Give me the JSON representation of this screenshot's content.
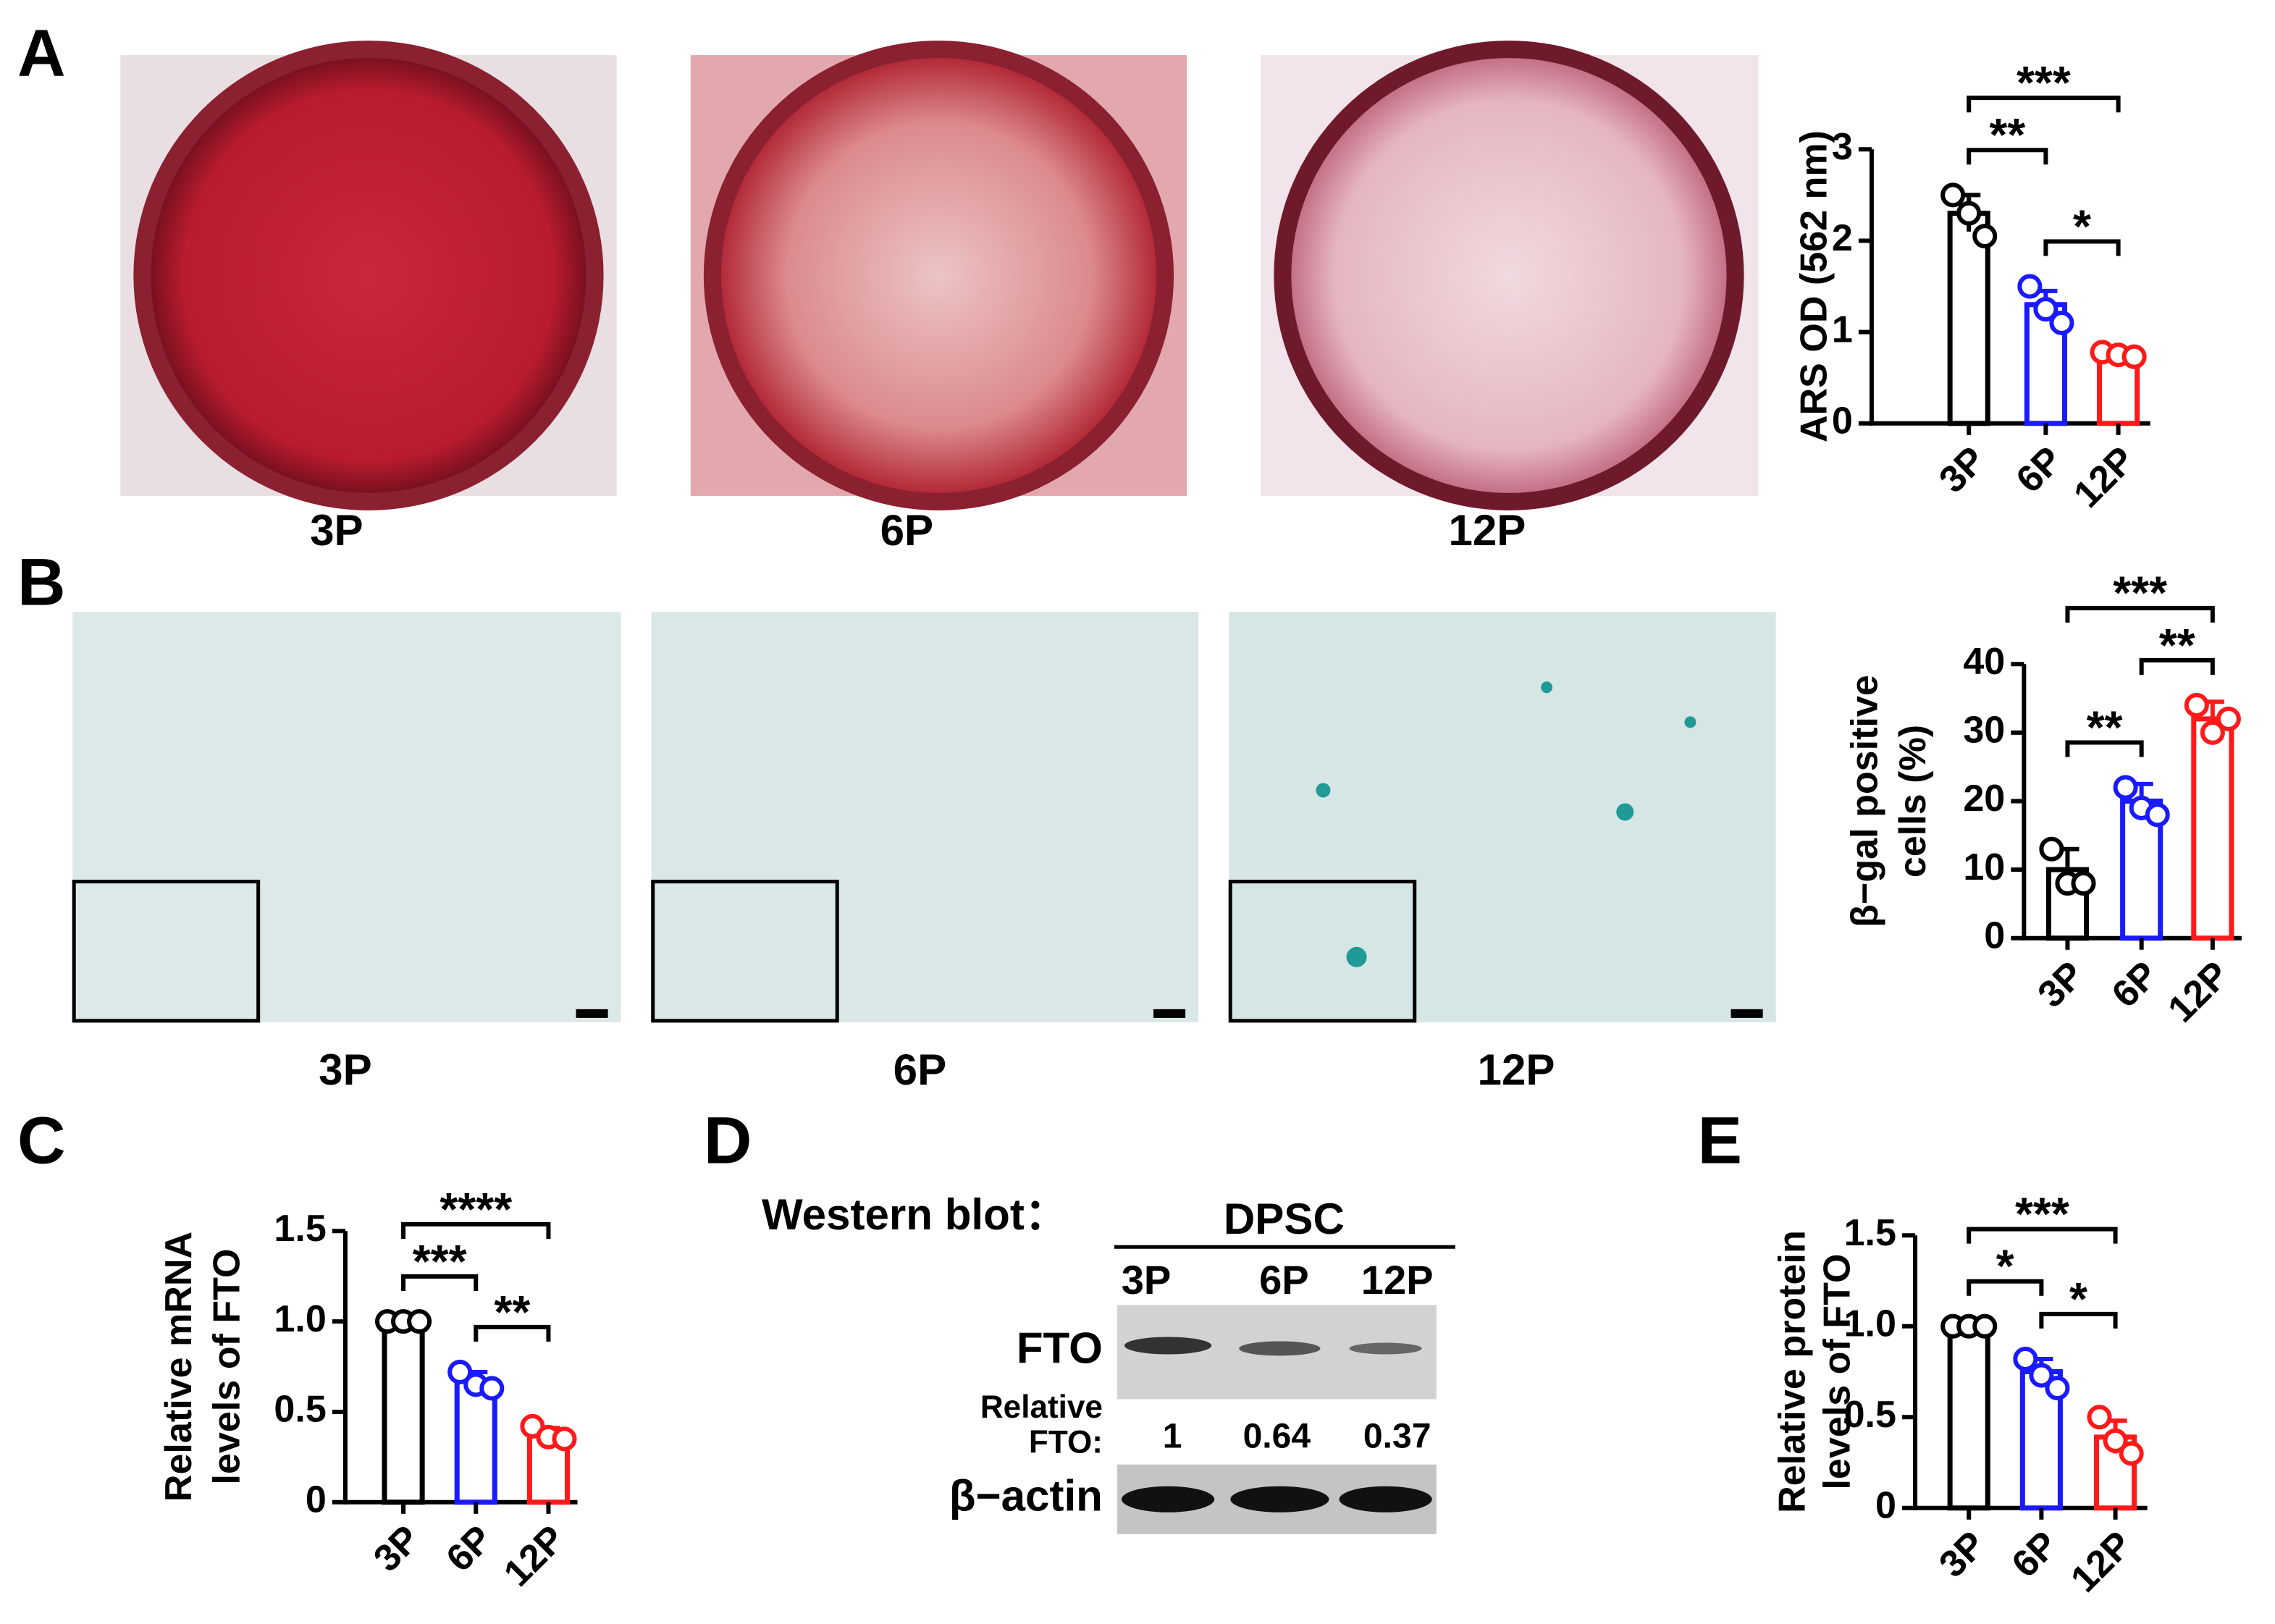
{
  "panel_labels": [
    "A",
    "B",
    "C",
    "D",
    "E"
  ],
  "panel_a_images": [
    "3P",
    "6P",
    "12P"
  ],
  "panel_b_images": [
    "3P",
    "6P",
    "12P"
  ],
  "western_blot": {
    "title": "Western blot：",
    "group": "DPSC",
    "lanes": [
      "3P",
      "6P",
      "12P"
    ],
    "rows": [
      "FTO",
      "β−actin"
    ],
    "relative_label": [
      "Relative",
      "FTO:"
    ],
    "relative_values": [
      1,
      0.64,
      0.37
    ]
  },
  "chart_data": [
    {
      "type": "bar",
      "y_label": [
        "ARS OD (562 nm)"
      ],
      "categories": [
        "3P",
        "6P",
        "12P"
      ],
      "colors": [
        "#000000",
        "#1a1aff",
        "#ff1a1a"
      ],
      "values": [
        2.3,
        1.3,
        0.75
      ],
      "errors": [
        0.2,
        0.15,
        0.03
      ],
      "points": [
        [
          2.5,
          2.3,
          2.05
        ],
        [
          1.5,
          1.25,
          1.1
        ],
        [
          0.78,
          0.75,
          0.73
        ]
      ],
      "ylim": [
        0,
        3
      ],
      "yticks": [
        0,
        1,
        2,
        3
      ],
      "comparisons": [
        {
          "label": "**",
          "between": [
            0,
            1
          ]
        },
        {
          "label": "*",
          "between": [
            1,
            2
          ]
        },
        {
          "label": "***",
          "between": [
            0,
            2
          ]
        }
      ]
    },
    {
      "type": "bar",
      "y_label": [
        "β−gal positive",
        "cells (%)"
      ],
      "categories": [
        "3P",
        "6P",
        "12P"
      ],
      "colors": [
        "#000000",
        "#1a1aff",
        "#ff1a1a"
      ],
      "values": [
        10,
        20,
        32
      ],
      "errors": [
        3,
        2.5,
        2.5
      ],
      "points": [
        [
          13,
          8,
          8
        ],
        [
          22,
          19,
          18
        ],
        [
          34,
          30,
          32
        ]
      ],
      "ylim": [
        0,
        40
      ],
      "yticks": [
        0,
        10,
        20,
        30,
        40
      ],
      "comparisons": [
        {
          "label": "**",
          "between": [
            0,
            1
          ]
        },
        {
          "label": "**",
          "between": [
            1,
            2
          ]
        },
        {
          "label": "***",
          "between": [
            0,
            2
          ]
        }
      ]
    },
    {
      "type": "bar",
      "y_label": [
        "Relative mRNA",
        "levels of FTO"
      ],
      "categories": [
        "3P",
        "6P",
        "12P"
      ],
      "colors": [
        "#000000",
        "#1a1aff",
        "#ff1a1a"
      ],
      "values": [
        1.0,
        0.67,
        0.38
      ],
      "errors": [
        0.01,
        0.05,
        0.03
      ],
      "points": [
        [
          1.0,
          1.0,
          1.0
        ],
        [
          0.72,
          0.65,
          0.63
        ],
        [
          0.42,
          0.36,
          0.35
        ]
      ],
      "ylim": [
        0,
        1.5
      ],
      "yticks": [
        0,
        0.5,
        {
          "value": 1,
          "label": "1.0"
        },
        1.5
      ],
      "comparisons": [
        {
          "label": "***",
          "between": [
            0,
            1
          ]
        },
        {
          "label": "**",
          "between": [
            1,
            2
          ]
        },
        {
          "label": "****",
          "between": [
            0,
            2
          ]
        }
      ]
    },
    {
      "type": "bar",
      "y_label": [
        "Relative protein",
        "levels of FTO"
      ],
      "categories": [
        "3P",
        "6P",
        "12P"
      ],
      "colors": [
        "#000000",
        "#1a1aff",
        "#ff1a1a"
      ],
      "values": [
        1.0,
        0.75,
        0.39
      ],
      "errors": [
        0.01,
        0.07,
        0.09
      ],
      "points": [
        [
          1.0,
          1.0,
          1.0
        ],
        [
          0.82,
          0.73,
          0.66
        ],
        [
          0.5,
          0.37,
          0.3
        ]
      ],
      "ylim": [
        0,
        1.5
      ],
      "yticks": [
        0,
        0.5,
        {
          "value": 1,
          "label": "1.0"
        },
        1.5
      ],
      "comparisons": [
        {
          "label": "*",
          "between": [
            0,
            1
          ]
        },
        {
          "label": "*",
          "between": [
            1,
            2
          ]
        },
        {
          "label": "***",
          "between": [
            0,
            2
          ]
        }
      ]
    }
  ]
}
